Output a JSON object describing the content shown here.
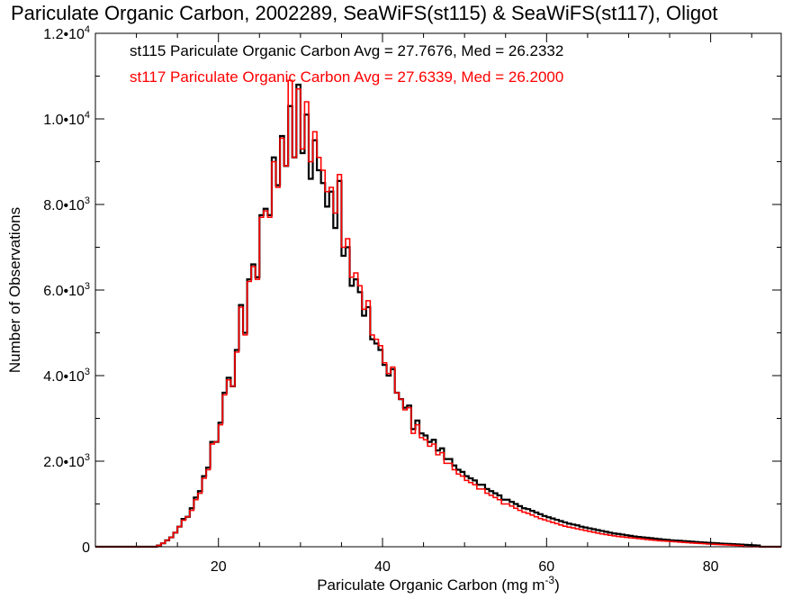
{
  "chart_data": {
    "type": "histogram",
    "title": "Pariculate Organic Carbon, 2002289, SeaWiFS(st115) & SeaWiFS(st117), Oligot",
    "xlabel": "Pariculate Organic Carbon (mg m",
    "xlabel_sup": "-3",
    "xlabel_end": ")",
    "ylabel": "Number of Observations",
    "xlim": [
      5,
      88.6
    ],
    "ylim": [
      0,
      12000
    ],
    "x_ticks": [
      {
        "value": 20,
        "label": "20"
      },
      {
        "value": 40,
        "label": "40"
      },
      {
        "value": 60,
        "label": "60"
      },
      {
        "value": 80,
        "label": "80"
      }
    ],
    "y_ticks": [
      {
        "value": 0,
        "base": "0",
        "exp": ""
      },
      {
        "value": 2000,
        "base": "2.0•10",
        "exp": "3"
      },
      {
        "value": 4000,
        "base": "4.0•10",
        "exp": "3"
      },
      {
        "value": 6000,
        "base": "6.0•10",
        "exp": "3"
      },
      {
        "value": 8000,
        "base": "8.0•10",
        "exp": "3"
      },
      {
        "value": 10000,
        "base": "1.0•10",
        "exp": "4"
      },
      {
        "value": 12000,
        "base": "1.2•10",
        "exp": "4"
      }
    ],
    "bin_width": 0.5,
    "x_start": 12.5,
    "series": [
      {
        "name": "st115",
        "label": "st115 Pariculate Organic Carbon Avg = 27.7676, Med = 26.2332",
        "color": "#000000",
        "values": [
          30,
          80,
          150,
          220,
          330,
          470,
          650,
          700,
          900,
          1150,
          1300,
          1650,
          1850,
          2450,
          2450,
          2900,
          3600,
          3950,
          3750,
          4600,
          5650,
          5000,
          6250,
          6600,
          6300,
          7750,
          7900,
          7750,
          9100,
          8450,
          9600,
          8900,
          10300,
          9100,
          10800,
          9200,
          10100,
          8600,
          9500,
          8800,
          8500,
          7950,
          8300,
          7450,
          8550,
          6800,
          7000,
          6100,
          6250,
          5950,
          5400,
          5600,
          4850,
          4750,
          4600,
          4250,
          4000,
          4150,
          3600,
          3450,
          3250,
          3300,
          2750,
          2950,
          2650,
          2600,
          2450,
          2500,
          2250,
          2300,
          2050,
          2050,
          1900,
          1800,
          1750,
          1650,
          1600,
          1550,
          1450,
          1450,
          1350,
          1300,
          1250,
          1200,
          1100,
          1100,
          1050,
          1000,
          950,
          900,
          880,
          840,
          800,
          760,
          720,
          690,
          660,
          630,
          600,
          570,
          540,
          520,
          500,
          470,
          450,
          430,
          410,
          390,
          370,
          350,
          330,
          310,
          300,
          285,
          270,
          255,
          240,
          230,
          220,
          210,
          200,
          190,
          180,
          170,
          160,
          150,
          145,
          140,
          133,
          126,
          119,
          112,
          105,
          99,
          93,
          87,
          81,
          75,
          70,
          65,
          60,
          55,
          50,
          45,
          40,
          35,
          30
        ]
      },
      {
        "name": "st117",
        "label": "st117 Pariculate Organic Carbon Avg = 27.6339, Med = 26.2000",
        "color": "#ff0000",
        "values": [
          30,
          80,
          150,
          220,
          330,
          470,
          620,
          700,
          850,
          1100,
          1250,
          1600,
          1800,
          2400,
          2450,
          2850,
          3550,
          3900,
          3750,
          4550,
          5600,
          4950,
          6200,
          6550,
          6250,
          7700,
          7850,
          7700,
          9000,
          8400,
          9550,
          8900,
          10900,
          9100,
          10700,
          9300,
          10400,
          9000,
          9700,
          9100,
          8800,
          8300,
          8400,
          7800,
          8700,
          7000,
          7200,
          6300,
          6400,
          6100,
          5550,
          5750,
          4950,
          4850,
          4700,
          4300,
          4050,
          4200,
          3600,
          3450,
          3200,
          3250,
          2650,
          2850,
          2550,
          2500,
          2350,
          2400,
          2150,
          2200,
          1950,
          1950,
          1800,
          1700,
          1650,
          1550,
          1500,
          1450,
          1350,
          1350,
          1250,
          1200,
          1150,
          1100,
          1000,
          1000,
          950,
          900,
          850,
          810,
          780,
          740,
          700,
          660,
          630,
          600,
          570,
          540,
          510,
          480,
          460,
          440,
          420,
          400,
          380,
          360,
          340,
          320,
          300,
          285,
          270,
          255,
          240,
          230,
          220,
          210,
          200,
          190,
          180,
          170,
          160,
          150,
          140,
          135,
          130,
          123,
          116,
          109,
          102,
          95,
          89,
          83,
          77,
          71,
          65,
          60,
          55,
          50,
          45,
          40,
          35,
          30,
          25
        ]
      }
    ]
  }
}
